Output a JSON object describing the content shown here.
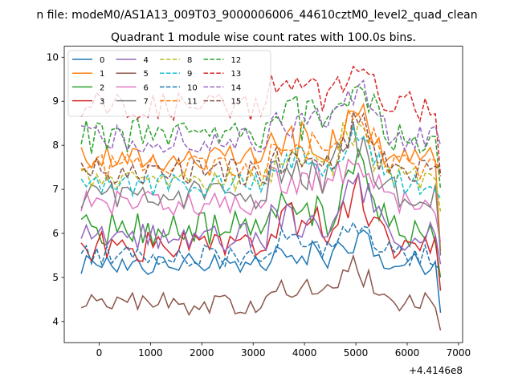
{
  "chart_data": {
    "type": "line",
    "suptitle": "n file: modeM0/AS1A13_009T03_9000006006_44610cztM0_level2_quad_clean",
    "title": "Quadrant 1 module wise count rates with 100.0s bins.",
    "xlabel": "",
    "ylabel": "",
    "x_offset_label": "+4.4146e8",
    "xlim": [
      -680,
      7080
    ],
    "ylim": [
      3.52,
      10.25
    ],
    "xticks": [
      0,
      1000,
      2000,
      3000,
      4000,
      5000,
      6000,
      7000
    ],
    "yticks": [
      4,
      5,
      6,
      7,
      8,
      9,
      10
    ],
    "x_start": -350,
    "x_step": 100,
    "n_points": 71,
    "legend_position": "top-left",
    "grid": false,
    "series": [
      {
        "name": "0",
        "color": "#1f77b4",
        "dash": "solid",
        "level": 5.3,
        "amp": 0.25,
        "seed": 1,
        "peak_amp": 0.7,
        "end": 4.2
      },
      {
        "name": "1",
        "color": "#ff7f0e",
        "dash": "solid",
        "level": 7.7,
        "amp": 0.3,
        "seed": 2,
        "peak_amp": 1.2,
        "end": 5.6
      },
      {
        "name": "2",
        "color": "#2ca02c",
        "dash": "solid",
        "level": 6.1,
        "amp": 0.4,
        "seed": 3,
        "peak_amp": 1.5,
        "end": 5.0
      },
      {
        "name": "3",
        "color": "#d62728",
        "dash": "solid",
        "level": 5.7,
        "amp": 0.35,
        "seed": 4,
        "peak_amp": 1.6,
        "end": 4.7
      },
      {
        "name": "4",
        "color": "#9467bd",
        "dash": "solid",
        "level": 5.9,
        "amp": 0.35,
        "seed": 5,
        "peak_amp": 1.6,
        "end": 5.3
      },
      {
        "name": "5",
        "color": "#8c564b",
        "dash": "solid",
        "level": 4.4,
        "amp": 0.25,
        "seed": 6,
        "peak_amp": 0.9,
        "end": 3.8
      },
      {
        "name": "6",
        "color": "#e377c2",
        "dash": "solid",
        "level": 6.7,
        "amp": 0.3,
        "seed": 7,
        "peak_amp": 1.3,
        "end": 5.8
      },
      {
        "name": "7",
        "color": "#7f7f7f",
        "dash": "solid",
        "level": 6.9,
        "amp": 0.35,
        "seed": 8,
        "peak_amp": 1.5,
        "end": 5.5
      },
      {
        "name": "8",
        "color": "#bcbd22",
        "dash": "dashed",
        "level": 7.2,
        "amp": 0.3,
        "seed": 9,
        "peak_amp": 1.4,
        "end": 6.5
      },
      {
        "name": "9",
        "color": "#17becf",
        "dash": "dashed",
        "level": 7.1,
        "amp": 0.3,
        "seed": 10,
        "peak_amp": 1.3,
        "end": 6.8
      },
      {
        "name": "10",
        "color": "#1f77b4",
        "dash": "dashed",
        "level": 5.5,
        "amp": 0.25,
        "seed": 11,
        "peak_amp": 0.8,
        "end": 5.2
      },
      {
        "name": "11",
        "color": "#ff7f0e",
        "dash": "dashed",
        "level": 7.5,
        "amp": 0.3,
        "seed": 12,
        "peak_amp": 1.2,
        "end": 7.3
      },
      {
        "name": "12",
        "color": "#2ca02c",
        "dash": "dashed",
        "level": 8.2,
        "amp": 0.4,
        "seed": 13,
        "peak_amp": 1.3,
        "end": 7.0
      },
      {
        "name": "13",
        "color": "#d62728",
        "dash": "dashed",
        "level": 8.9,
        "amp": 0.35,
        "seed": 14,
        "peak_amp": 1.0,
        "end": 7.3
      },
      {
        "name": "14",
        "color": "#9467bd",
        "dash": "dashed",
        "level": 8.1,
        "amp": 0.35,
        "seed": 15,
        "peak_amp": 1.1,
        "end": 8.0
      },
      {
        "name": "15",
        "color": "#8c564b",
        "dash": "dashed",
        "level": 7.4,
        "amp": 0.3,
        "seed": 16,
        "peak_amp": 1.1,
        "end": 7.4
      }
    ]
  }
}
